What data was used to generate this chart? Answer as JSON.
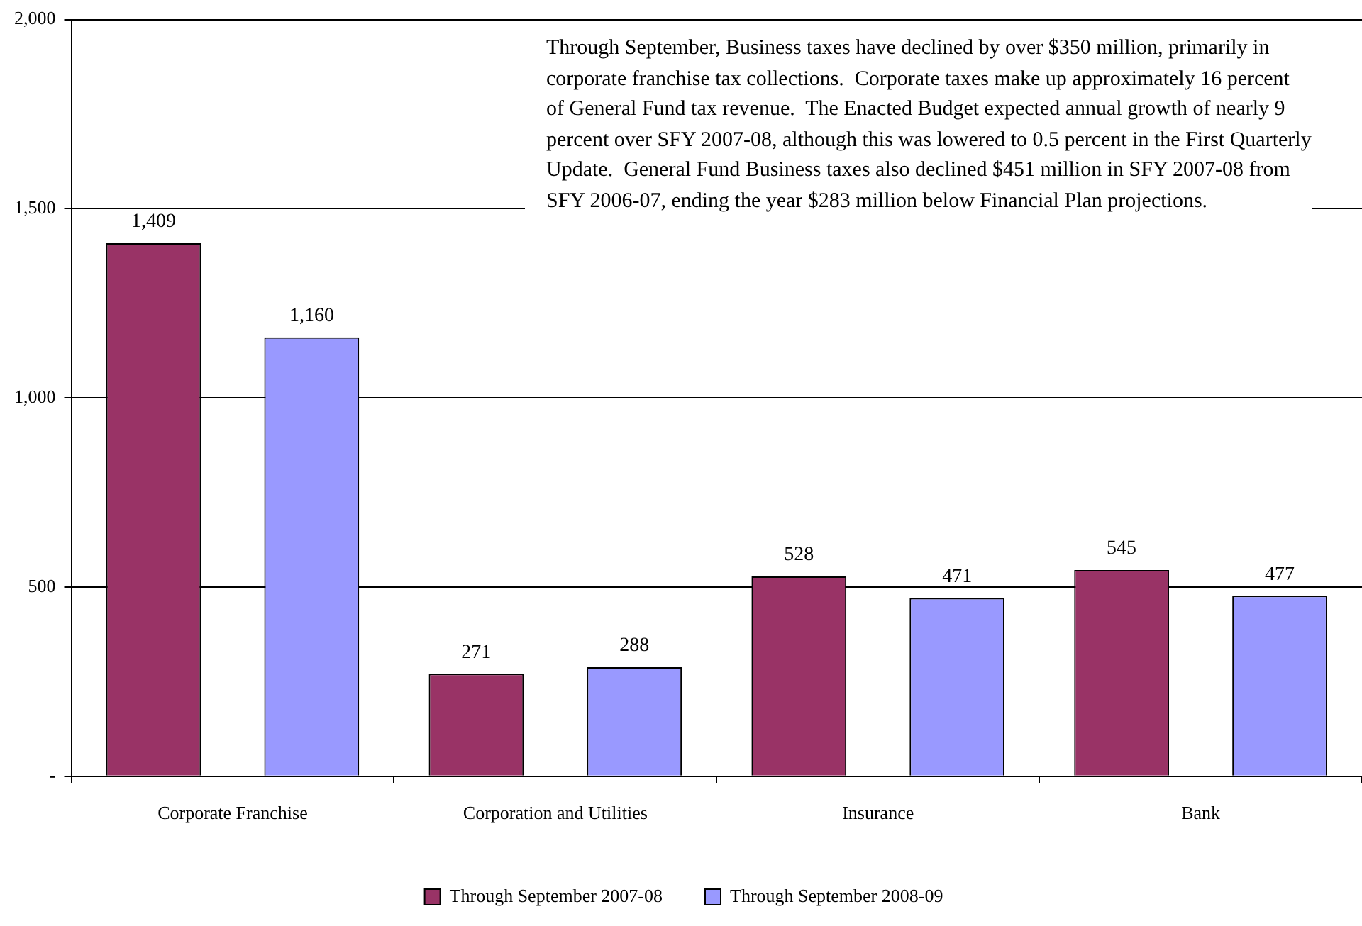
{
  "chart_data": {
    "type": "bar",
    "categories": [
      "Corporate Franchise",
      "Corporation and Utilities",
      "Insurance",
      "Bank"
    ],
    "series": [
      {
        "name": "Through September 2007-08",
        "color": "#993366",
        "values": [
          1409,
          271,
          528,
          545
        ],
        "value_labels": [
          "1,409",
          "271",
          "528",
          "545"
        ]
      },
      {
        "name": "Through September 2008-09",
        "color": "#9999ff",
        "values": [
          1160,
          288,
          471,
          477
        ],
        "value_labels": [
          "1,160",
          "288",
          "471",
          "477"
        ]
      }
    ],
    "ylim": [
      0,
      2000
    ],
    "yticks": [
      {
        "value": 0,
        "label": "-"
      },
      {
        "value": 500,
        "label": "500"
      },
      {
        "value": 1000,
        "label": "1,000"
      },
      {
        "value": 1500,
        "label": "1,500"
      },
      {
        "value": 2000,
        "label": "2,000"
      }
    ],
    "grid": "y",
    "legend": "bottom",
    "annotations": [
      "Through September, Business taxes have declined by over $350 million, primarily in corporate franchise tax collections.  Corporate taxes make up approximately 16 percent of General Fund tax revenue.  The Enacted Budget expected annual growth of nearly 9 percent over SFY 2007-08, although this was lowered to 0.5 percent in the First Quarterly Update.  General Fund Business taxes also declined $451 million in SFY 2007-08 from SFY 2006-07, ending the year $283 million below Financial Plan projections."
    ]
  }
}
